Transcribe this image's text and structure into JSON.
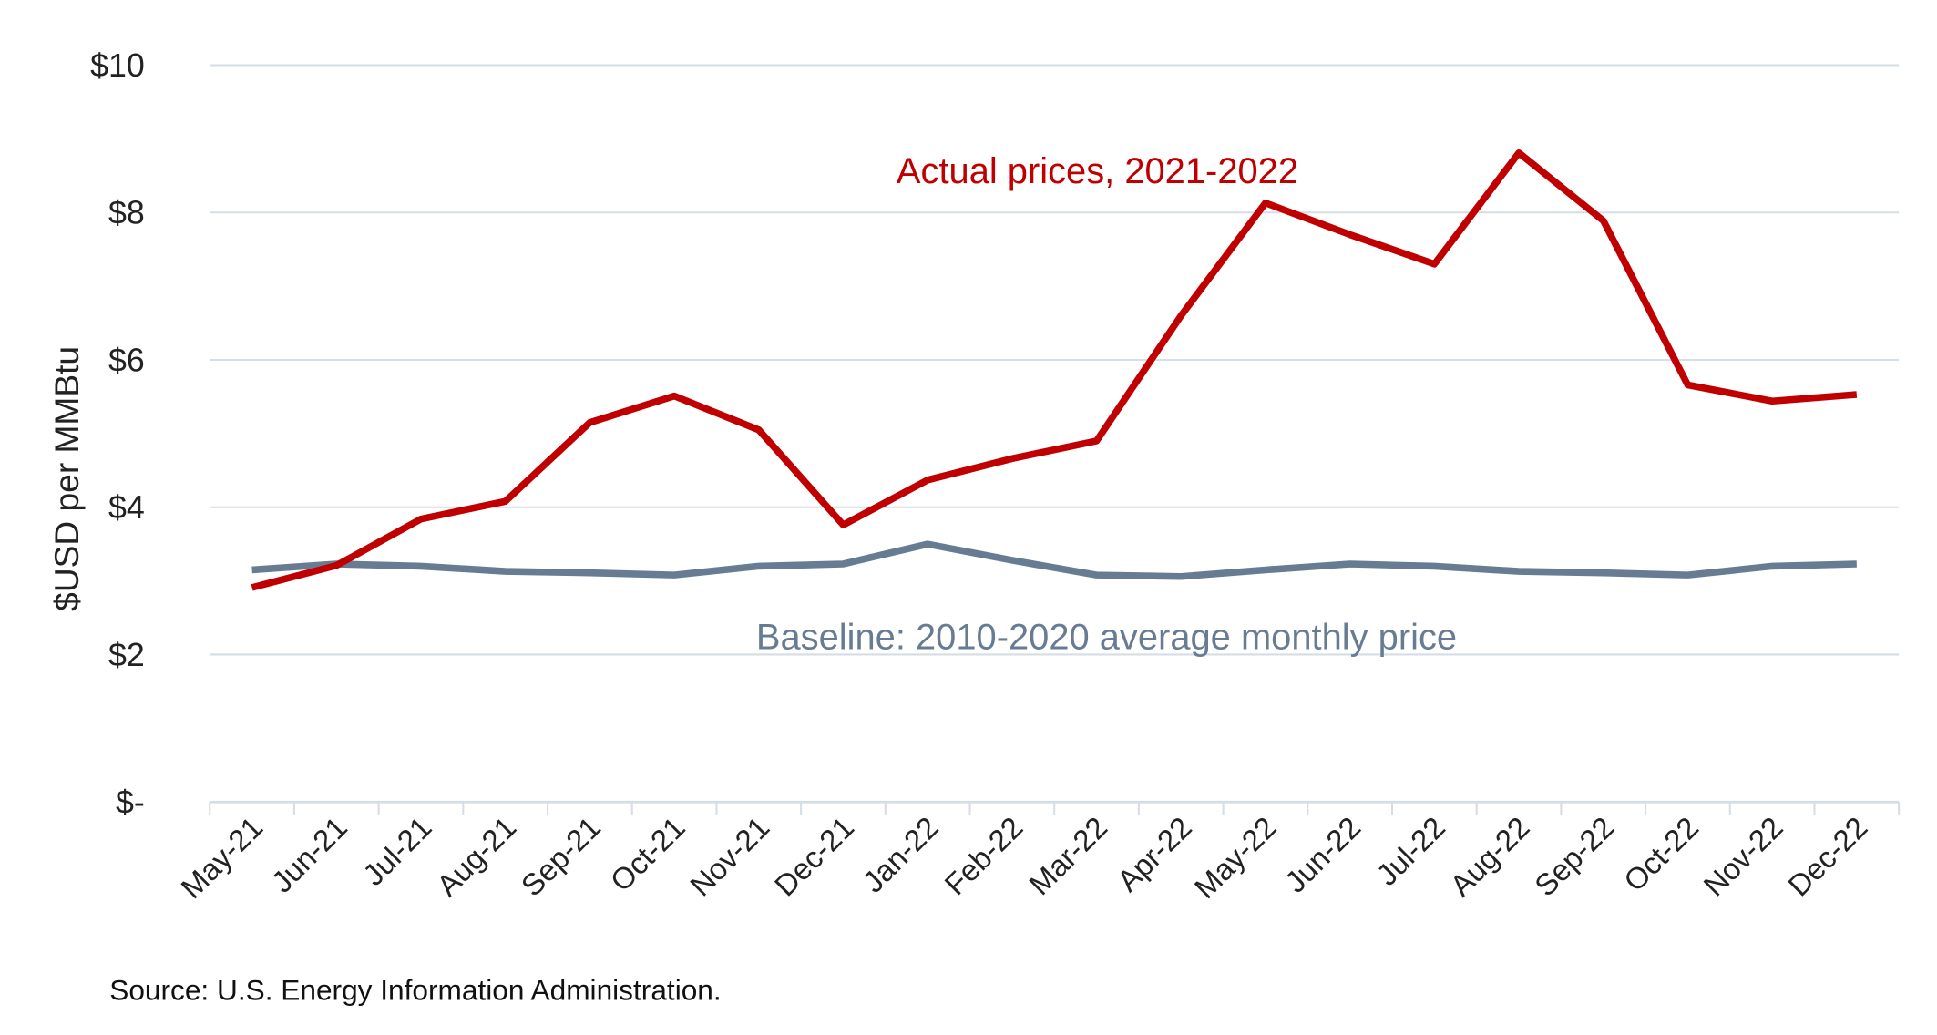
{
  "chart_data": {
    "type": "line",
    "title": "",
    "xlabel": "",
    "ylabel": "$USD per MMBtu",
    "ylim": [
      0,
      10
    ],
    "yticks": [
      0,
      2,
      4,
      6,
      8,
      10
    ],
    "ytick_labels": [
      "$-",
      "$2",
      "$4",
      "$6",
      "$8",
      "$10"
    ],
    "grid": "horizontal",
    "categories": [
      "May-21",
      "Jun-21",
      "Jul-21",
      "Aug-21",
      "Sep-21",
      "Oct-21",
      "Nov-21",
      "Dec-21",
      "Jan-22",
      "Feb-22",
      "Mar-22",
      "Apr-22",
      "May-22",
      "Jun-22",
      "Jul-22",
      "Aug-22",
      "Sep-22",
      "Oct-22",
      "Nov-22",
      "Dec-22"
    ],
    "series": [
      {
        "name": "Actual prices, 2021-2022",
        "color": "#c00000",
        "values": [
          2.91,
          3.21,
          3.84,
          4.08,
          5.15,
          5.51,
          5.05,
          3.76,
          4.37,
          4.66,
          4.9,
          6.6,
          8.13,
          7.7,
          7.3,
          8.81,
          7.89,
          5.66,
          5.44,
          5.53
        ]
      },
      {
        "name": "Baseline: 2010-2020 average monthly price",
        "color": "#677c93",
        "values": [
          3.15,
          3.23,
          3.2,
          3.13,
          3.11,
          3.08,
          3.2,
          3.23,
          3.5,
          3.28,
          3.08,
          3.06,
          3.15,
          3.23,
          3.2,
          3.13,
          3.11,
          3.08,
          3.2,
          3.23
        ]
      }
    ],
    "source": "Source:  U.S. Energy Information Administration."
  }
}
